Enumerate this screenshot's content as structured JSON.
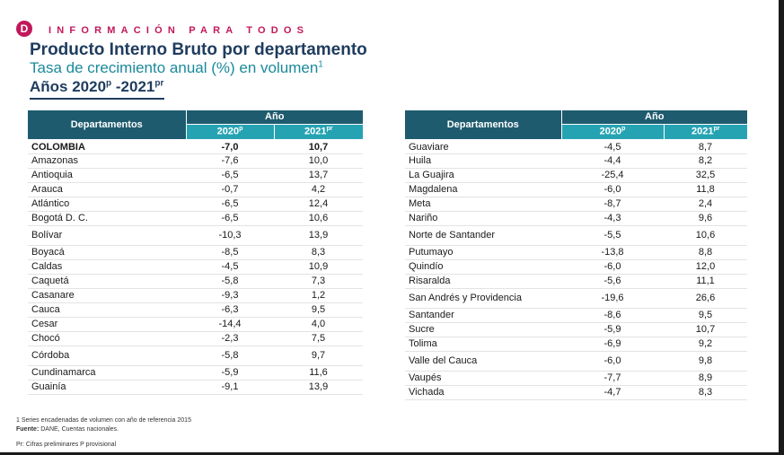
{
  "header": {
    "logo_letter": "D",
    "brand": "INFORMACIÓN PARA TODOS",
    "title": "Producto Interno Bruto por departamento",
    "subtitle": "Tasa de crecimiento anual (%) en volumen",
    "subtitle_sup": "1",
    "years_a": "Años 2020",
    "years_a_sup": "p",
    "years_b": " -2021",
    "years_b_sup": "pr"
  },
  "table_headers": {
    "departamentos": "Departamentos",
    "ano": "Año",
    "y1": "2020",
    "y1_sup": "p",
    "y2": "2021",
    "y2_sup": "pr"
  },
  "left_table": [
    {
      "name": "COLOMBIA",
      "v2020": "-7,0",
      "v2021": "10,7",
      "bold": true
    },
    {
      "name": "Amazonas",
      "v2020": "-7,6",
      "v2021": "10,0"
    },
    {
      "name": "Antioquia",
      "v2020": "-6,5",
      "v2021": "13,7"
    },
    {
      "name": "Arauca",
      "v2020": "-0,7",
      "v2021": "4,2"
    },
    {
      "name": "Atlántico",
      "v2020": "-6,5",
      "v2021": "12,4"
    },
    {
      "name": "Bogotá D. C.",
      "v2020": "-6,5",
      "v2021": "10,6"
    },
    {
      "name": "Bolívar",
      "v2020": "-10,3",
      "v2021": "13,9",
      "tall": true
    },
    {
      "name": "Boyacá",
      "v2020": "-8,5",
      "v2021": "8,3"
    },
    {
      "name": "Caldas",
      "v2020": "-4,5",
      "v2021": "10,9"
    },
    {
      "name": "Caquetá",
      "v2020": "-5,8",
      "v2021": "7,3"
    },
    {
      "name": "Casanare",
      "v2020": "-9,3",
      "v2021": "1,2"
    },
    {
      "name": "Cauca",
      "v2020": "-6,3",
      "v2021": "9,5"
    },
    {
      "name": "Cesar",
      "v2020": "-14,4",
      "v2021": "4,0"
    },
    {
      "name": "Chocó",
      "v2020": "-2,3",
      "v2021": "7,5"
    },
    {
      "name": "Córdoba",
      "v2020": "-5,8",
      "v2021": "9,7",
      "tall": true
    },
    {
      "name": "Cundinamarca",
      "v2020": "-5,9",
      "v2021": "11,6"
    },
    {
      "name": "Guainía",
      "v2020": "-9,1",
      "v2021": "13,9"
    }
  ],
  "right_table": [
    {
      "name": "Guaviare",
      "v2020": "-4,5",
      "v2021": "8,7"
    },
    {
      "name": "Huila",
      "v2020": "-4,4",
      "v2021": "8,2"
    },
    {
      "name": "La Guajira",
      "v2020": "-25,4",
      "v2021": "32,5"
    },
    {
      "name": "Magdalena",
      "v2020": "-6,0",
      "v2021": "11,8"
    },
    {
      "name": "Meta",
      "v2020": "-8,7",
      "v2021": "2,4"
    },
    {
      "name": "Nariño",
      "v2020": "-4,3",
      "v2021": "9,6"
    },
    {
      "name": "Norte de Santander",
      "v2020": "-5,5",
      "v2021": "10,6",
      "tall": true
    },
    {
      "name": "Putumayo",
      "v2020": "-13,8",
      "v2021": "8,8"
    },
    {
      "name": "Quindío",
      "v2020": "-6,0",
      "v2021": "12,0"
    },
    {
      "name": "Risaralda",
      "v2020": "-5,6",
      "v2021": "11,1"
    },
    {
      "name": "San Andrés y Providencia",
      "v2020": "-19,6",
      "v2021": "26,6",
      "tall": true
    },
    {
      "name": "Santander",
      "v2020": "-8,6",
      "v2021": "9,5"
    },
    {
      "name": "Sucre",
      "v2020": "-5,9",
      "v2021": "10,7"
    },
    {
      "name": "Tolima",
      "v2020": "-6,9",
      "v2021": "9,2"
    },
    {
      "name": "Valle del Cauca",
      "v2020": "-6,0",
      "v2021": "9,8",
      "tall": true
    },
    {
      "name": "Vaupés",
      "v2020": "-7,7",
      "v2021": "8,9"
    },
    {
      "name": "Vichada",
      "v2020": "-4,7",
      "v2021": "8,3"
    }
  ],
  "notes": {
    "note1": "1 Series encadenadas de volumen con año de referencia 2015",
    "source_label": "Fuente:",
    "source_text": " DANE, Cuentas nacionales.",
    "note3": "Pr: Cifras preliminares  P provisional"
  },
  "colors": {
    "brand": "#c2185b",
    "title": "#1f3c5e",
    "subtitle": "#1a8a9a",
    "header_dark": "#1e5b6e",
    "header_light": "#26a3b3"
  }
}
